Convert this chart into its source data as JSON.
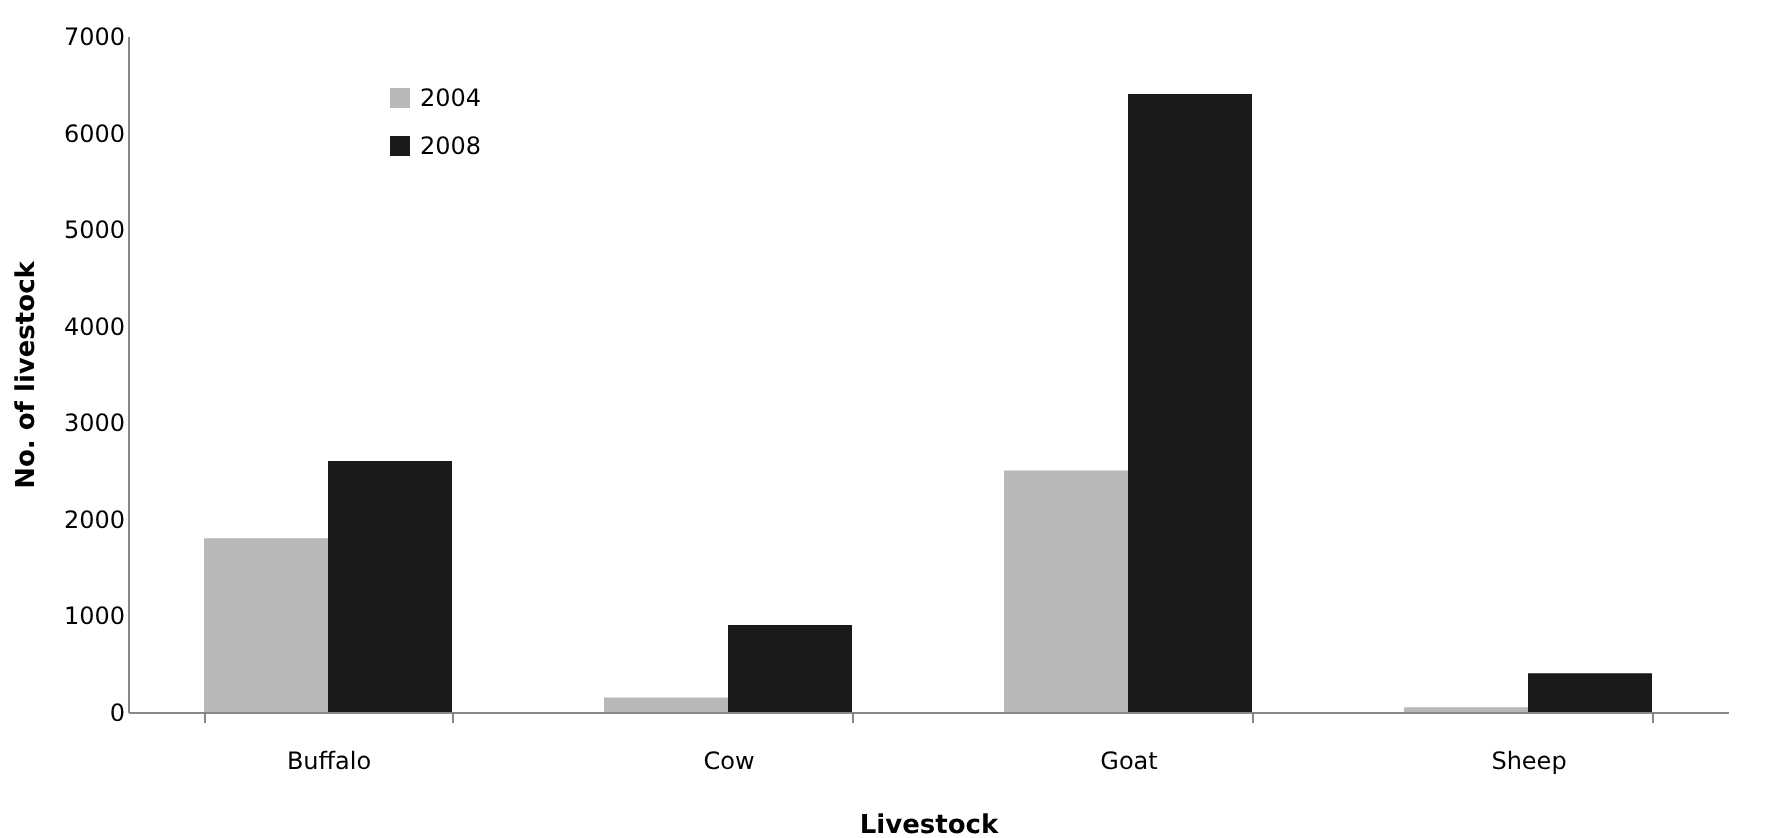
{
  "chart_data": {
    "type": "bar",
    "xlabel": "Livestock",
    "ylabel": "No. of livestock",
    "categories": [
      "Buffalo",
      "Cow",
      "Goat",
      "Sheep"
    ],
    "series": [
      {
        "name": "2004",
        "color": "#b8b8b8",
        "values": [
          1800,
          150,
          2500,
          50
        ]
      },
      {
        "name": "2008",
        "color": "#1a1a1a",
        "values": [
          2600,
          900,
          6400,
          400
        ]
      }
    ],
    "ylim": [
      0,
      7000
    ],
    "yticks": [
      0,
      1000,
      2000,
      3000,
      4000,
      5000,
      6000,
      7000
    ],
    "grid": false,
    "legend": "top left"
  }
}
